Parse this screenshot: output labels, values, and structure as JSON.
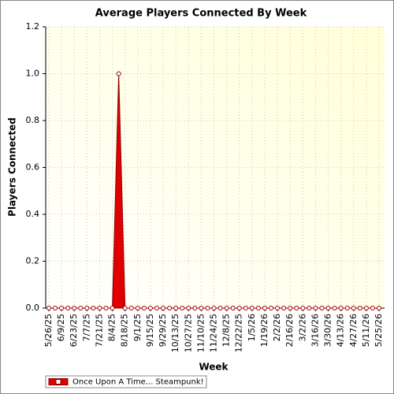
{
  "chart_data": {
    "type": "area",
    "title": "Average Players Connected By Week",
    "xlabel": "Week",
    "ylabel": "Players Connected",
    "categories": [
      "5/26/25",
      null,
      "6/9/25",
      null,
      "6/23/25",
      null,
      "7/7/25",
      null,
      "7/21/25",
      null,
      "8/4/25",
      null,
      "8/18/25",
      null,
      "9/1/25",
      null,
      "9/15/25",
      null,
      "9/29/25",
      null,
      "10/13/25",
      null,
      "10/27/25",
      null,
      "11/10/25",
      null,
      "11/24/25",
      null,
      "12/8/25",
      null,
      "12/22/25",
      null,
      "1/5/26",
      null,
      "1/19/26",
      null,
      "2/2/26",
      null,
      "2/16/26",
      null,
      "3/2/26",
      null,
      "3/16/26",
      null,
      "3/30/26",
      null,
      "4/13/26",
      null,
      "4/27/26",
      null,
      "5/11/26",
      null,
      "5/25/26"
    ],
    "series": [
      {
        "name": "Once Upon A Time... Steampunk!",
        "color": "#e00000",
        "values": [
          0,
          0,
          0,
          0,
          0,
          0,
          0,
          0,
          0,
          0,
          0,
          1.0,
          0,
          0,
          0,
          0,
          0,
          0,
          0,
          0,
          0,
          0,
          0,
          0,
          0,
          0,
          0,
          0,
          0,
          0,
          0,
          0,
          0,
          0,
          0,
          0,
          0,
          0,
          0,
          0,
          0,
          0,
          0,
          0,
          0,
          0,
          0,
          0,
          0,
          0,
          0,
          0,
          0
        ]
      }
    ],
    "ylim": [
      0,
      1.2
    ],
    "yticks": [
      {
        "value": 0,
        "label": "0.0"
      },
      0.2,
      0.4,
      0.6,
      0.8,
      {
        "value": 1,
        "label": "1.0"
      },
      1.2
    ],
    "grid": true,
    "legend": "bottom-left"
  }
}
